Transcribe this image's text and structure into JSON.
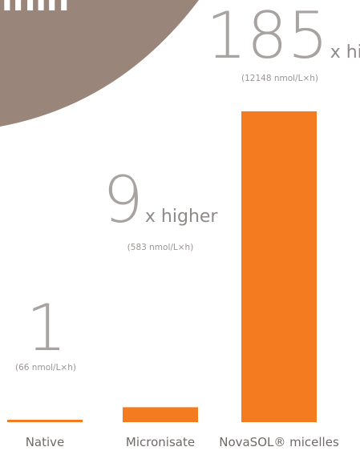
{
  "colors": {
    "bar": "#f47b20",
    "number": "#a8a3a1",
    "label": "#6f6a68",
    "corner_shape": "#9a857b"
  },
  "corner_logo_text": "inin",
  "chart_data": {
    "type": "bar",
    "title": "",
    "xlabel": "",
    "ylabel": "",
    "categories": [
      "Native",
      "Micronisate",
      "NovaSOL® micelles"
    ],
    "values": [
      66,
      583,
      12148
    ],
    "unit": "nmol/L×h",
    "multipliers": [
      "1",
      "9",
      "185"
    ],
    "multiplier_suffix": [
      "",
      "x higher",
      "x higher"
    ],
    "value_labels": [
      "(66 nmol/L×h)",
      "(583 nmol/L×h)",
      "(12148 nmol/L×h)"
    ],
    "ylim": [
      0,
      12148
    ],
    "grid": false,
    "legend": "none"
  }
}
